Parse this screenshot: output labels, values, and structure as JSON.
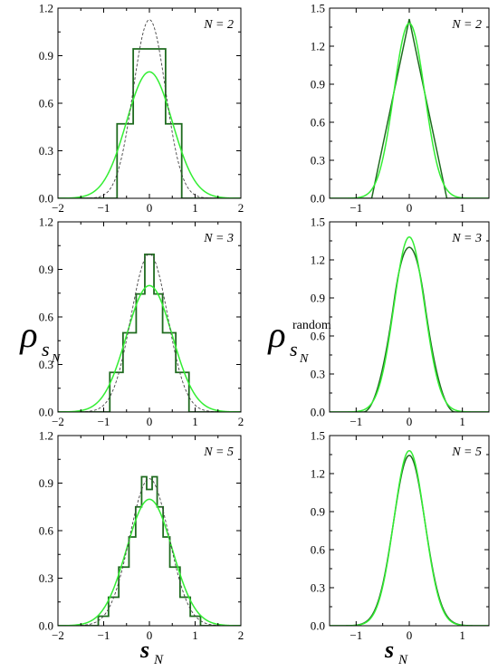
{
  "figure": {
    "left_ylabel_main": "ρ",
    "left_ylabel_sub": "s",
    "left_ylabel_subsub": "N",
    "right_ylabel_main": "ρ",
    "right_ylabel_sup": "random",
    "right_ylabel_sub": "s",
    "right_ylabel_subsub": "N",
    "xlabel_main": "s",
    "xlabel_sub": "N"
  },
  "colors": {
    "dark_green": "#1f6b1f",
    "light_green": "#33ee33",
    "dashed": "#444444",
    "axis": "#000000"
  },
  "chart_data": [
    {
      "type": "line",
      "panel": "left-N2",
      "annotation": "N = 2",
      "xlim": [
        -2,
        2
      ],
      "ylim": [
        0,
        1.2
      ],
      "xticks": [
        "−2",
        "−1",
        "0",
        "1",
        "2"
      ],
      "yticks": [
        "0.0",
        "0.3",
        "0.6",
        "0.9",
        "1.2"
      ],
      "series": [
        {
          "style": "step-dark-green",
          "x": [
            -2,
            -0.707,
            -0.707,
            -0.354,
            -0.354,
            0.354,
            0.354,
            0.707,
            0.707,
            2
          ],
          "y": [
            0,
            0,
            0.47,
            0.47,
            0.943,
            0.943,
            0.47,
            0.47,
            0,
            0
          ]
        },
        {
          "style": "gaussian-light-green",
          "sigma": 0.5
        },
        {
          "style": "gaussian-dashed",
          "sigma": 0.354
        }
      ]
    },
    {
      "type": "line",
      "panel": "right-N2",
      "annotation": "N = 2",
      "xlim": [
        -1.5,
        1.5
      ],
      "ylim": [
        0,
        1.5
      ],
      "xticks": [
        "−1",
        "0",
        "1"
      ],
      "yticks": [
        "0.0",
        "0.3",
        "0.6",
        "0.9",
        "1.2",
        "1.5"
      ],
      "series": [
        {
          "style": "triangle-dark-green",
          "halfwidth": 0.707
        },
        {
          "style": "gaussian-light-green",
          "sigma": 0.289
        }
      ]
    },
    {
      "type": "line",
      "panel": "left-N3",
      "annotation": "N = 3",
      "xlim": [
        -2,
        2
      ],
      "ylim": [
        0,
        1.2
      ],
      "xticks": [
        "−2",
        "−1",
        "0",
        "1",
        "2"
      ],
      "yticks": [
        "0.0",
        "0.3",
        "0.6",
        "0.9",
        "1.2"
      ],
      "series": [
        {
          "style": "step-dark-green",
          "x": [
            -2,
            -0.866,
            -0.866,
            -0.577,
            -0.577,
            -0.289,
            -0.289,
            -0.1,
            -0.1,
            0.1,
            0.1,
            0.289,
            0.289,
            0.577,
            0.577,
            0.866,
            0.866,
            2
          ],
          "y": [
            0,
            0,
            0.25,
            0.25,
            0.5,
            0.5,
            0.745,
            0.745,
            0.995,
            0.995,
            0.745,
            0.745,
            0.5,
            0.5,
            0.25,
            0.25,
            0,
            0
          ]
        },
        {
          "style": "gaussian-light-green",
          "sigma": 0.5
        },
        {
          "style": "gaussian-dashed",
          "sigma": 0.4
        }
      ]
    },
    {
      "type": "line",
      "panel": "right-N3",
      "annotation": "N = 3",
      "xlim": [
        -1.5,
        1.5
      ],
      "ylim": [
        0,
        1.5
      ],
      "xticks": [
        "−1",
        "0",
        "1"
      ],
      "yticks": [
        "0.0",
        "0.3",
        "0.6",
        "0.9",
        "1.2",
        "1.5"
      ],
      "series": [
        {
          "style": "bspline3-dark-green",
          "halfwidth": 0.866
        },
        {
          "style": "gaussian-light-green",
          "sigma": 0.289
        }
      ]
    },
    {
      "type": "line",
      "panel": "left-N5",
      "annotation": "N = 5",
      "xlim": [
        -2,
        2
      ],
      "ylim": [
        0,
        1.2
      ],
      "xticks": [
        "−2",
        "−1",
        "0",
        "1",
        "2"
      ],
      "yticks": [
        "0.0",
        "0.3",
        "0.6",
        "0.9",
        "1.2"
      ],
      "series": [
        {
          "style": "step-dark-green",
          "x": [
            -2,
            -1.118,
            -1.118,
            -0.894,
            -0.894,
            -0.67,
            -0.67,
            -0.447,
            -0.447,
            -0.3,
            -0.3,
            -0.17,
            -0.17,
            -0.06,
            -0.06,
            0.06,
            0.06,
            0.17,
            0.17,
            0.3,
            0.3,
            0.447,
            0.447,
            0.67,
            0.67,
            0.894,
            0.894,
            1.118,
            1.118,
            2
          ],
          "y": [
            0,
            0,
            0.06,
            0.06,
            0.18,
            0.18,
            0.37,
            0.37,
            0.56,
            0.56,
            0.75,
            0.75,
            0.94,
            0.94,
            0.86,
            0.86,
            0.94,
            0.94,
            0.75,
            0.75,
            0.56,
            0.56,
            0.37,
            0.37,
            0.18,
            0.18,
            0.06,
            0.06,
            0,
            0
          ]
        },
        {
          "style": "gaussian-light-green",
          "sigma": 0.5
        },
        {
          "style": "gaussian-dashed",
          "sigma": 0.43
        }
      ]
    },
    {
      "type": "line",
      "panel": "right-N5",
      "annotation": "N = 5",
      "xlim": [
        -1.5,
        1.5
      ],
      "ylim": [
        0,
        1.5
      ],
      "xticks": [
        "−1",
        "0",
        "1"
      ],
      "yticks": [
        "0.0",
        "0.3",
        "0.6",
        "0.9",
        "1.2",
        "1.5"
      ],
      "series": [
        {
          "style": "gaussian-dark-green",
          "sigma": 0.297
        },
        {
          "style": "gaussian-light-green",
          "sigma": 0.289
        }
      ]
    }
  ]
}
